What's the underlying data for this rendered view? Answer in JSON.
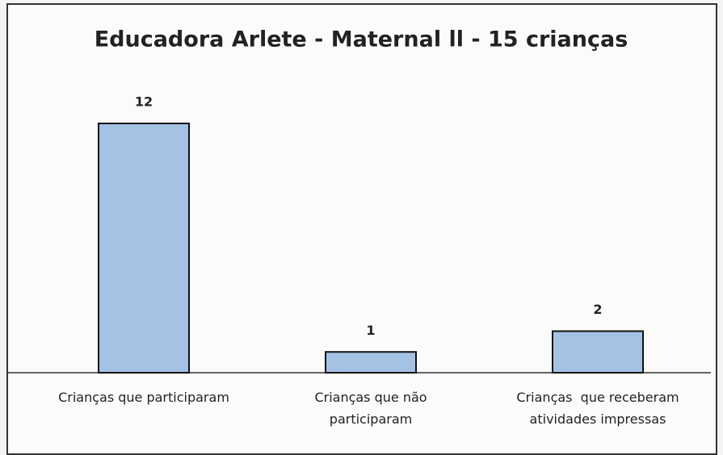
{
  "chart_data": {
    "type": "bar",
    "title": "Educadora Arlete - Maternal ll - 15 crianças",
    "categories": [
      "Crianças que participaram",
      "Crianças que não participaram",
      "Crianças  que receberam atividades impressas"
    ],
    "values": [
      12,
      1,
      2
    ],
    "color": "#a4c2e4"
  }
}
